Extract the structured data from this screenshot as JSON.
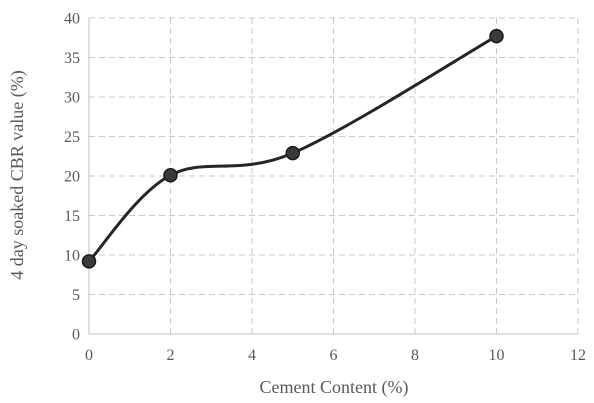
{
  "chart_data": {
    "type": "line",
    "smooth": true,
    "title": "",
    "xlabel": "Cement Content (%)",
    "ylabel": "4 day soaked CBR value (%)",
    "xlim": [
      0,
      12
    ],
    "ylim": [
      0,
      40
    ],
    "x_ticks": [
      0,
      2,
      4,
      6,
      8,
      10,
      12
    ],
    "y_ticks": [
      0,
      5,
      10,
      15,
      20,
      25,
      30,
      35,
      40
    ],
    "grid": true,
    "legend": "none",
    "series": [
      {
        "x": [
          0,
          2,
          5,
          10
        ],
        "y": [
          9.2,
          20.1,
          22.9,
          37.7
        ],
        "color": "#262626",
        "marker": "circle"
      }
    ]
  }
}
